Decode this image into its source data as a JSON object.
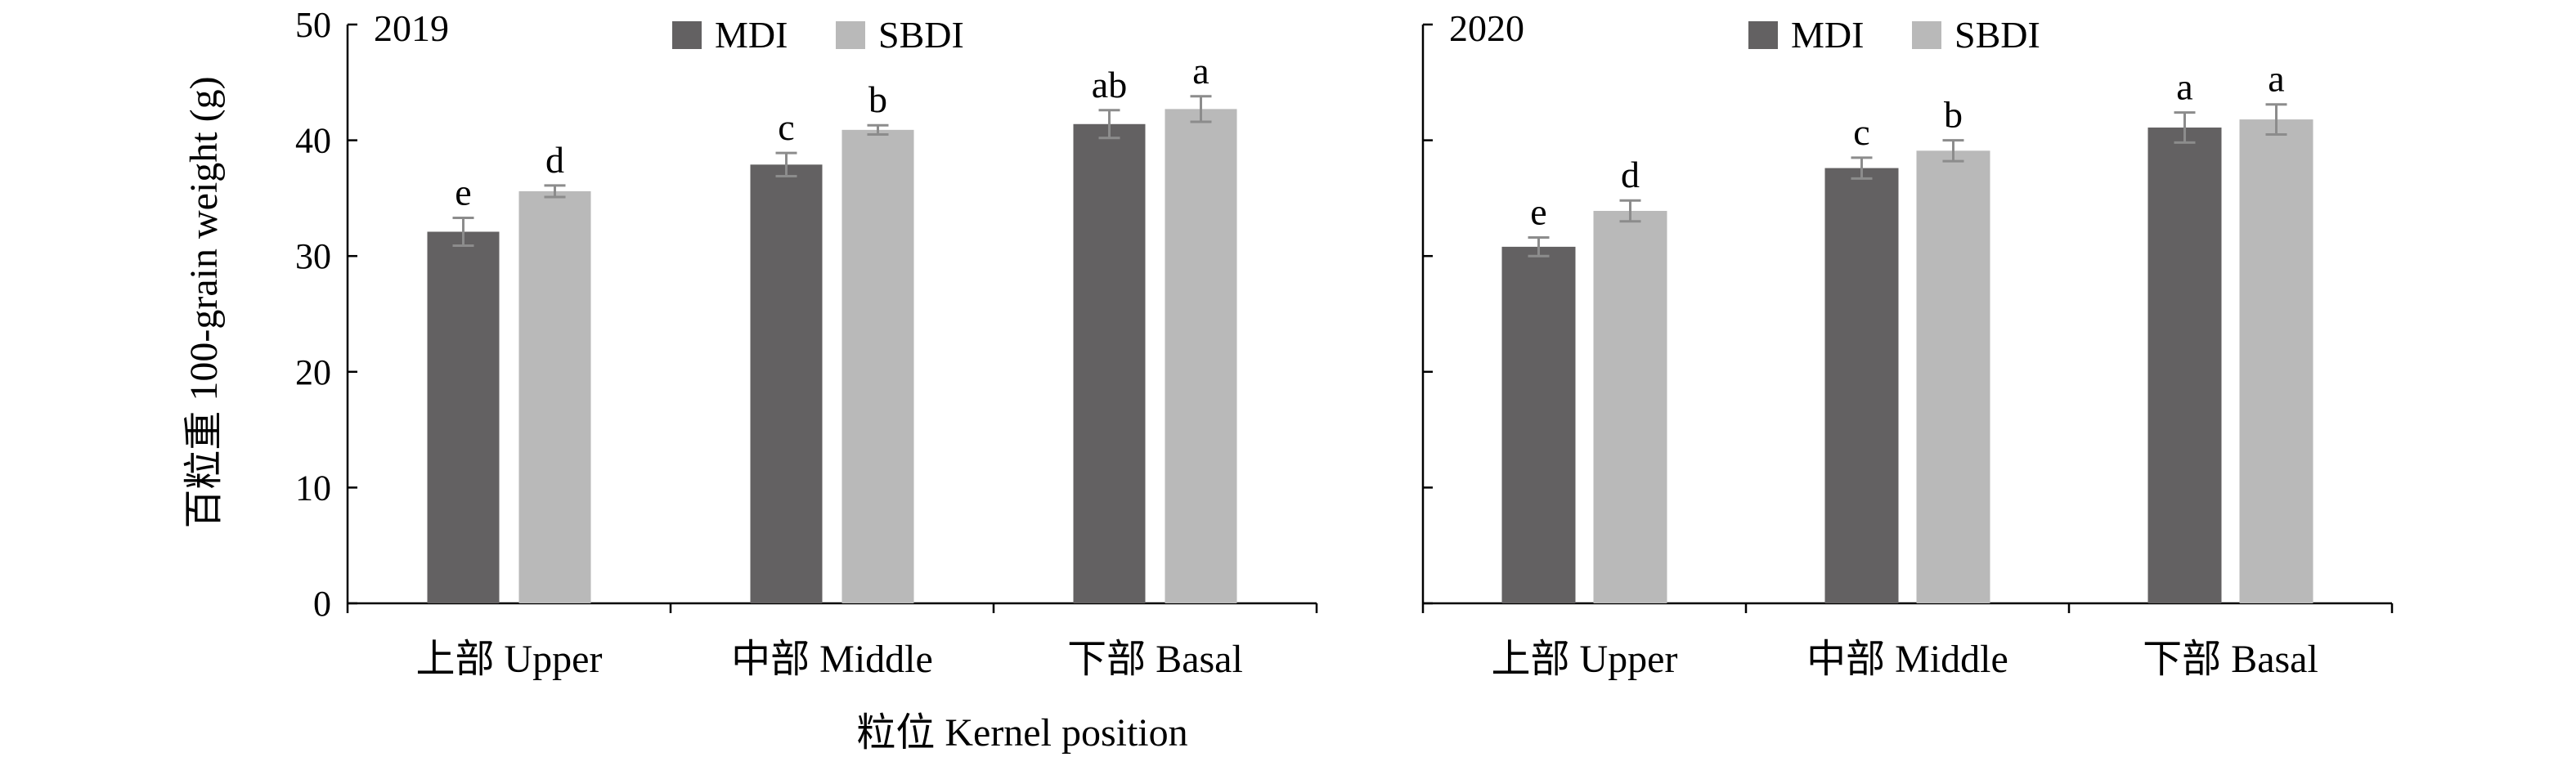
{
  "figure": {
    "ylabel": "百粒重 100-grain weight (g)",
    "xlabel": "粒位 Kernel position"
  },
  "chart_data": [
    {
      "type": "bar",
      "panel_label": "2019",
      "categories": [
        "上部 Upper",
        "中部 Middle",
        "下部 Basal"
      ],
      "series": [
        {
          "name": "MDI",
          "color": "#636162",
          "values": [
            32.1,
            37.9,
            41.4
          ],
          "errors": [
            1.2,
            1.0,
            1.2
          ],
          "letters": [
            "e",
            "c",
            "ab"
          ]
        },
        {
          "name": "SBDI",
          "color": "#b9b9b9",
          "values": [
            35.6,
            40.9,
            42.7
          ],
          "errors": [
            0.5,
            0.4,
            1.1
          ],
          "letters": [
            "d",
            "b",
            "a"
          ]
        }
      ],
      "ylim": [
        0,
        50
      ],
      "yticks": [
        0,
        10,
        20,
        30,
        40,
        50
      ],
      "ytick_labels_shown": true,
      "legend": "top-center",
      "grid": false
    },
    {
      "type": "bar",
      "panel_label": "2020",
      "categories": [
        "上部 Upper",
        "中部 Middle",
        "下部 Basal"
      ],
      "series": [
        {
          "name": "MDI",
          "color": "#636162",
          "values": [
            30.8,
            37.6,
            41.1
          ],
          "errors": [
            0.8,
            0.9,
            1.3
          ],
          "letters": [
            "e",
            "c",
            "a"
          ]
        },
        {
          "name": "SBDI",
          "color": "#b9b9b9",
          "values": [
            33.9,
            39.1,
            41.8
          ],
          "errors": [
            0.9,
            0.9,
            1.3
          ],
          "letters": [
            "d",
            "b",
            "a"
          ]
        }
      ],
      "ylim": [
        0,
        50
      ],
      "yticks": [
        0,
        10,
        20,
        30,
        40,
        50
      ],
      "ytick_labels_shown": false,
      "legend": "top-center",
      "grid": false
    }
  ]
}
